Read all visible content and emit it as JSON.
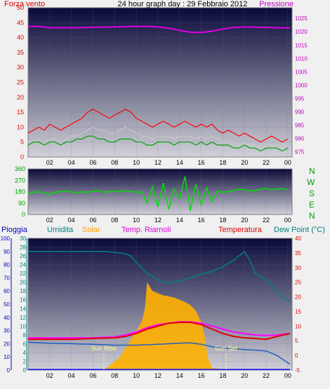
{
  "colors": {
    "wind_avg": "#ff0000",
    "wind_gust": "#00a000",
    "wind_line": "#c8c8c8",
    "pressure": "#e000e0",
    "direction": "#00e000",
    "humidity": "#008080",
    "solar": "#ffb000",
    "indoor_temp": "#ff00ff",
    "temperature": "#e00000",
    "dew_point": "#2060c0",
    "rain": "#1010ff",
    "sun_marker": "#ffff80"
  },
  "chart_data": [
    {
      "type": "line",
      "panel": "wind_pressure",
      "title": "24 hour graph day : 29 Febbraio 2012",
      "left_label": "Forza vento",
      "right_label": "Pressione",
      "x_ticks": [
        "02",
        "04",
        "06",
        "08",
        "10",
        "12",
        "14",
        "16",
        "18",
        "20",
        "22",
        "00"
      ],
      "x_range": [
        0,
        24.4
      ],
      "y_left_ticks": [
        0,
        5,
        10,
        15,
        20,
        25,
        30,
        35,
        40,
        45,
        50
      ],
      "y_left_range": [
        0,
        50
      ],
      "y_right_ticks": [
        975,
        980,
        985,
        990,
        995,
        1000,
        1005,
        1010,
        1015,
        1020,
        1025
      ],
      "y_right_range": [
        973,
        1029
      ],
      "series": [
        {
          "key": "wind_avg",
          "x": [
            0,
            0.5,
            1,
            1.5,
            2,
            2.5,
            3,
            3.5,
            4,
            4.5,
            5,
            5.5,
            6,
            6.5,
            7,
            7.5,
            8,
            8.5,
            9,
            9.5,
            10,
            10.5,
            11,
            11.5,
            12,
            12.5,
            13,
            13.5,
            14,
            14.5,
            15,
            15.5,
            16,
            16.5,
            17,
            17.5,
            18,
            18.5,
            19,
            19.5,
            20,
            20.5,
            21,
            21.5,
            22,
            22.5,
            23,
            23.5,
            24
          ],
          "y": [
            8,
            9,
            10,
            9,
            11,
            10,
            9,
            10,
            11,
            12,
            13,
            15,
            16,
            15,
            14,
            13,
            14,
            15,
            16,
            15,
            13,
            12,
            11,
            10,
            11,
            12,
            11,
            10,
            11,
            12,
            11,
            10,
            11,
            10,
            11,
            9,
            8,
            9,
            8,
            7,
            8,
            7,
            6,
            5,
            6,
            7,
            6,
            5,
            6
          ]
        },
        {
          "key": "wind_line",
          "x": [
            0,
            0.5,
            1,
            1.5,
            2,
            2.5,
            3,
            3.5,
            4,
            4.5,
            5,
            5.5,
            6,
            6.5,
            7,
            7.5,
            8,
            8.5,
            9,
            9.5,
            10,
            10.5,
            11,
            11.5,
            12,
            12.5,
            13,
            13.5,
            14,
            14.5,
            15,
            15.5,
            16,
            16.5,
            17,
            17.5,
            18,
            18.5,
            19,
            19.5,
            20,
            20.5,
            21,
            21.5,
            22,
            22.5,
            23,
            23.5,
            24
          ],
          "y": [
            5,
            5,
            6,
            5,
            6,
            6,
            5,
            6,
            7,
            7,
            8,
            9,
            10,
            9,
            9,
            8,
            8,
            9,
            10,
            9,
            8,
            7,
            7,
            6,
            7,
            7,
            7,
            6,
            7,
            7,
            7,
            6,
            7,
            6,
            7,
            6,
            5,
            5,
            5,
            4,
            5,
            4,
            4,
            3,
            4,
            4,
            4,
            3,
            4
          ]
        },
        {
          "key": "wind_gust",
          "x": [
            0,
            0.5,
            1,
            1.5,
            2,
            2.5,
            3,
            3.5,
            4,
            4.5,
            5,
            5.5,
            6,
            6.5,
            7,
            7.5,
            8,
            8.5,
            9,
            9.5,
            10,
            10.5,
            11,
            11.5,
            12,
            12.5,
            13,
            13.5,
            14,
            14.5,
            15,
            15.5,
            16,
            16.5,
            17,
            17.5,
            18,
            18.5,
            19,
            19.5,
            20,
            20.5,
            21,
            21.5,
            22,
            22.5,
            23,
            23.5,
            24
          ],
          "y": [
            4,
            5,
            5,
            4,
            5,
            5,
            4,
            5,
            5,
            6,
            6,
            7,
            7,
            6,
            6,
            5,
            5,
            6,
            6,
            6,
            5,
            5,
            4,
            4,
            5,
            5,
            5,
            4,
            5,
            5,
            5,
            4,
            5,
            4,
            5,
            4,
            4,
            4,
            3,
            3,
            4,
            3,
            3,
            2,
            3,
            3,
            3,
            2,
            3
          ]
        },
        {
          "key": "pressure",
          "axis": "right",
          "x": [
            0,
            1,
            2,
            3,
            4,
            5,
            6,
            7,
            8,
            9,
            10,
            11,
            12,
            13,
            14,
            15,
            16,
            17,
            18,
            19,
            20,
            21,
            22,
            23,
            24.2
          ],
          "y": [
            1022,
            1022,
            1021.5,
            1021.5,
            1021.5,
            1021.5,
            1021.7,
            1021.7,
            1021.8,
            1021.9,
            1022,
            1022,
            1021.8,
            1021.3,
            1020.5,
            1019.8,
            1019.7,
            1020.2,
            1021,
            1021.6,
            1021.8,
            1021.7,
            1021.6,
            1021.5,
            1021.4
          ]
        }
      ]
    },
    {
      "type": "line",
      "panel": "wind_direction",
      "x_ticks": [
        "02",
        "04",
        "06",
        "08",
        "10",
        "12",
        "14",
        "16",
        "18",
        "20",
        "22",
        "00"
      ],
      "x_range": [
        0,
        24.4
      ],
      "y_ticks": [
        0,
        90,
        180,
        270,
        360
      ],
      "y_range": [
        0,
        360
      ],
      "compass_labels": [
        "N",
        "W",
        "S",
        "E",
        "N"
      ],
      "series": [
        {
          "key": "direction",
          "x": [
            0,
            0.5,
            1,
            1.5,
            2,
            2.5,
            3,
            3.5,
            4,
            4.5,
            5,
            5.5,
            6,
            6.5,
            7,
            7.5,
            8,
            8.5,
            9,
            9.5,
            10,
            10.5,
            11,
            11.5,
            12,
            12.5,
            13,
            13.5,
            14,
            14.5,
            15,
            15.5,
            16,
            16.5,
            17,
            17.5,
            18,
            18.5,
            19,
            19.5,
            20,
            20.5,
            21,
            21.5,
            22,
            22.5,
            23,
            23.5,
            24
          ],
          "y": [
            165,
            175,
            180,
            170,
            160,
            175,
            180,
            185,
            178,
            172,
            180,
            175,
            182,
            188,
            176,
            180,
            185,
            178,
            190,
            182,
            175,
            180,
            90,
            220,
            60,
            250,
            40,
            200,
            120,
            300,
            30,
            240,
            80,
            210,
            100,
            185,
            175,
            180,
            190,
            200,
            195,
            185,
            190,
            200,
            205,
            195,
            200,
            205,
            195
          ]
        }
      ]
    },
    {
      "type": "line",
      "panel": "temperature_humidity_solar",
      "labels": [
        "Pioggia",
        "Umidita",
        "Solar",
        "Temp. Riarnoli",
        "Temperatura",
        "Dew Point (°C)"
      ],
      "annotations": [
        "Sun Rise",
        "Sun Set"
      ],
      "sunrise_hour": 7.0,
      "sunset_hour": 18.3,
      "x_ticks": [
        "02",
        "04",
        "06",
        "08",
        "10",
        "12",
        "14",
        "16",
        "18",
        "20",
        "22",
        "00"
      ],
      "x_range": [
        0,
        24.4
      ],
      "y_rain_ticks": [
        0,
        10,
        20,
        30,
        40,
        50,
        60,
        70,
        80,
        90,
        100
      ],
      "y_rain_range": [
        0,
        100
      ],
      "y_hum_ticks": [
        0,
        2,
        4,
        6,
        8,
        10,
        12,
        14,
        16,
        18,
        20,
        22,
        24,
        26,
        28,
        30
      ],
      "y_hum_range": [
        0,
        30
      ],
      "y_temp_ticks": [
        -5,
        0,
        5,
        10,
        15,
        20,
        25,
        30,
        35,
        40
      ],
      "y_temp_range": [
        -5,
        40
      ],
      "series": [
        {
          "key": "humidity",
          "axis": "humidity",
          "x": [
            0,
            1,
            2,
            3,
            4,
            5,
            6,
            7,
            8,
            9,
            9.5,
            10,
            11,
            12,
            13,
            14,
            15,
            16,
            17,
            18,
            19,
            19.5,
            20,
            20.5,
            21,
            22,
            23,
            23.5,
            24.2
          ],
          "y": [
            27,
            27,
            27,
            27,
            27,
            27,
            27,
            27,
            26.8,
            26.5,
            26,
            24.5,
            22,
            20.5,
            19.8,
            20.3,
            21,
            21.8,
            22.5,
            23.5,
            25,
            26,
            27,
            25,
            22,
            20.5,
            18,
            16.5,
            15.7
          ]
        },
        {
          "key": "solar",
          "axis": "humidity",
          "fill": true,
          "x": [
            7,
            7.5,
            8,
            8.5,
            9,
            9.5,
            10,
            10.5,
            10.8,
            11,
            11.5,
            12,
            12.5,
            13,
            13.5,
            14,
            14.5,
            15,
            15.5,
            16,
            16.3,
            16.6,
            17,
            18,
            18.3
          ],
          "y": [
            0,
            1,
            2,
            3,
            5,
            7,
            9,
            11,
            14,
            20,
            18,
            17.5,
            17,
            16.8,
            16.5,
            16,
            15.5,
            14.8,
            13.5,
            11,
            8,
            3,
            0.5,
            0.2,
            0
          ]
        },
        {
          "key": "indoor_temp",
          "axis": "temp",
          "x": [
            0,
            2,
            4,
            6,
            8,
            9,
            10,
            11,
            12,
            13,
            14,
            15,
            16,
            17,
            18,
            19,
            20,
            21,
            22,
            23,
            24.2
          ],
          "y": [
            6,
            6,
            6,
            6,
            6.3,
            7,
            8,
            9.5,
            10.5,
            11,
            11.5,
            11.5,
            11,
            10,
            9,
            8,
            7.5,
            7,
            6.8,
            7,
            7.5
          ]
        },
        {
          "key": "temperature",
          "axis": "temp",
          "x": [
            0,
            2,
            4,
            6,
            8,
            9,
            10,
            11,
            12,
            13,
            14,
            15,
            16,
            17,
            18,
            19,
            20,
            21,
            22,
            23,
            24.2
          ],
          "y": [
            5.5,
            5.5,
            5.5,
            5.8,
            6,
            6.5,
            7.5,
            9,
            10,
            11,
            11.3,
            11.3,
            10.5,
            9,
            7.5,
            6.5,
            6,
            5.8,
            5.5,
            6.5,
            7.5
          ]
        },
        {
          "key": "dew_point",
          "axis": "temp",
          "x": [
            0,
            2,
            4,
            6,
            8,
            10,
            12,
            14,
            15,
            16,
            17,
            18,
            19,
            20,
            21,
            22,
            23,
            24.2
          ],
          "y": [
            4.5,
            4.2,
            4,
            3.8,
            3.5,
            3.5,
            3.8,
            4.2,
            4.3,
            3.8,
            3,
            2.5,
            2.3,
            2,
            1.8,
            1.5,
            0,
            -3
          ]
        },
        {
          "key": "rain",
          "axis": "rain",
          "x": [
            0,
            24.2
          ],
          "y": [
            0.5,
            0.5
          ]
        }
      ]
    }
  ]
}
